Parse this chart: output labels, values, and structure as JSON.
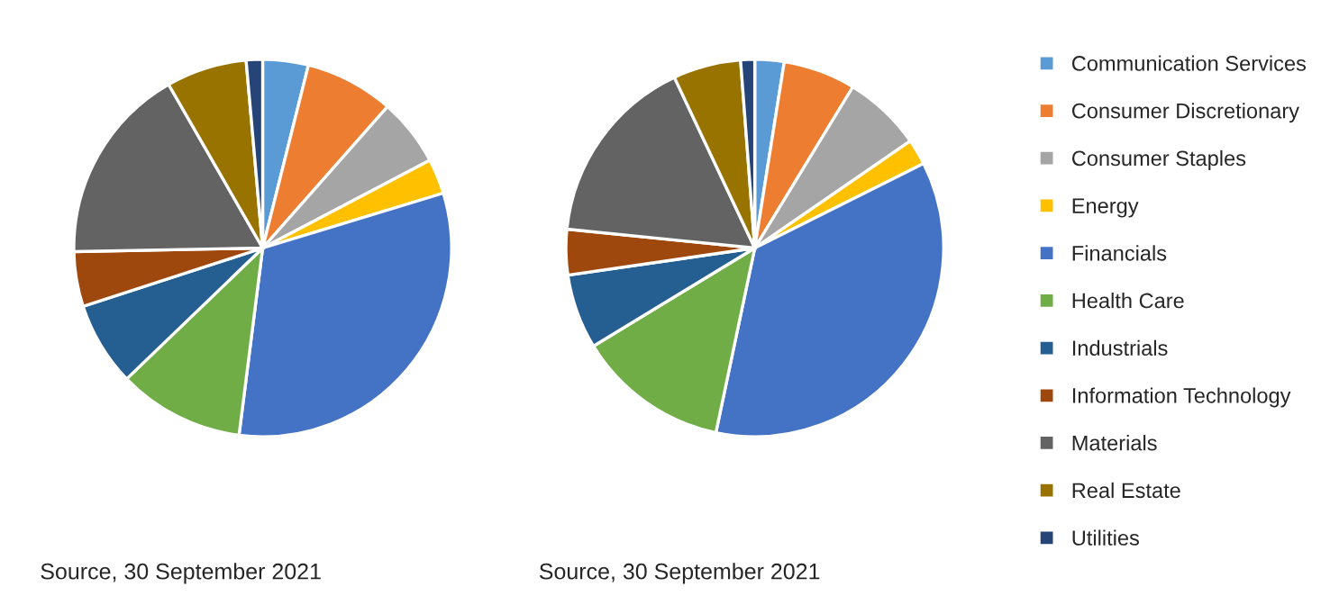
{
  "chart_data": [
    {
      "type": "pie",
      "categories": [
        "Communication Services",
        "Consumer Discretionary",
        "Consumer Staples",
        "Energy",
        "Financials",
        "Health Care",
        "Industrials",
        "Information Technology",
        "Materials",
        "Real Estate",
        "Utilities"
      ],
      "values": [
        3.9,
        7.6,
        5.8,
        3.0,
        31.7,
        10.8,
        7.2,
        4.7,
        17.0,
        6.9,
        1.4
      ],
      "colors": [
        "#5b9bd5",
        "#ed7d31",
        "#a5a5a5",
        "#ffc000",
        "#4472c4",
        "#70ad47",
        "#255e91",
        "#9e480e",
        "#636363",
        "#997300",
        "#264478"
      ],
      "annotations": [
        "Source, 30 September 2021"
      ],
      "legend": "right"
    },
    {
      "type": "pie",
      "categories": [
        null,
        null,
        null,
        null,
        null,
        null,
        null,
        null,
        null,
        null,
        null
      ],
      "values": [
        2.5,
        6.2,
        6.7,
        2.2,
        35.7,
        13.0,
        6.4,
        3.9,
        16.4,
        5.8,
        1.2
      ],
      "colors": [
        "#5b9bd5",
        "#ed7d31",
        "#a5a5a5",
        "#ffc000",
        "#4472c4",
        "#70ad47",
        "#255e91",
        "#9e480e",
        "#636363",
        "#997300",
        "#264478"
      ],
      "annotations": [
        "Source, 30 September 2021"
      ]
    }
  ]
}
